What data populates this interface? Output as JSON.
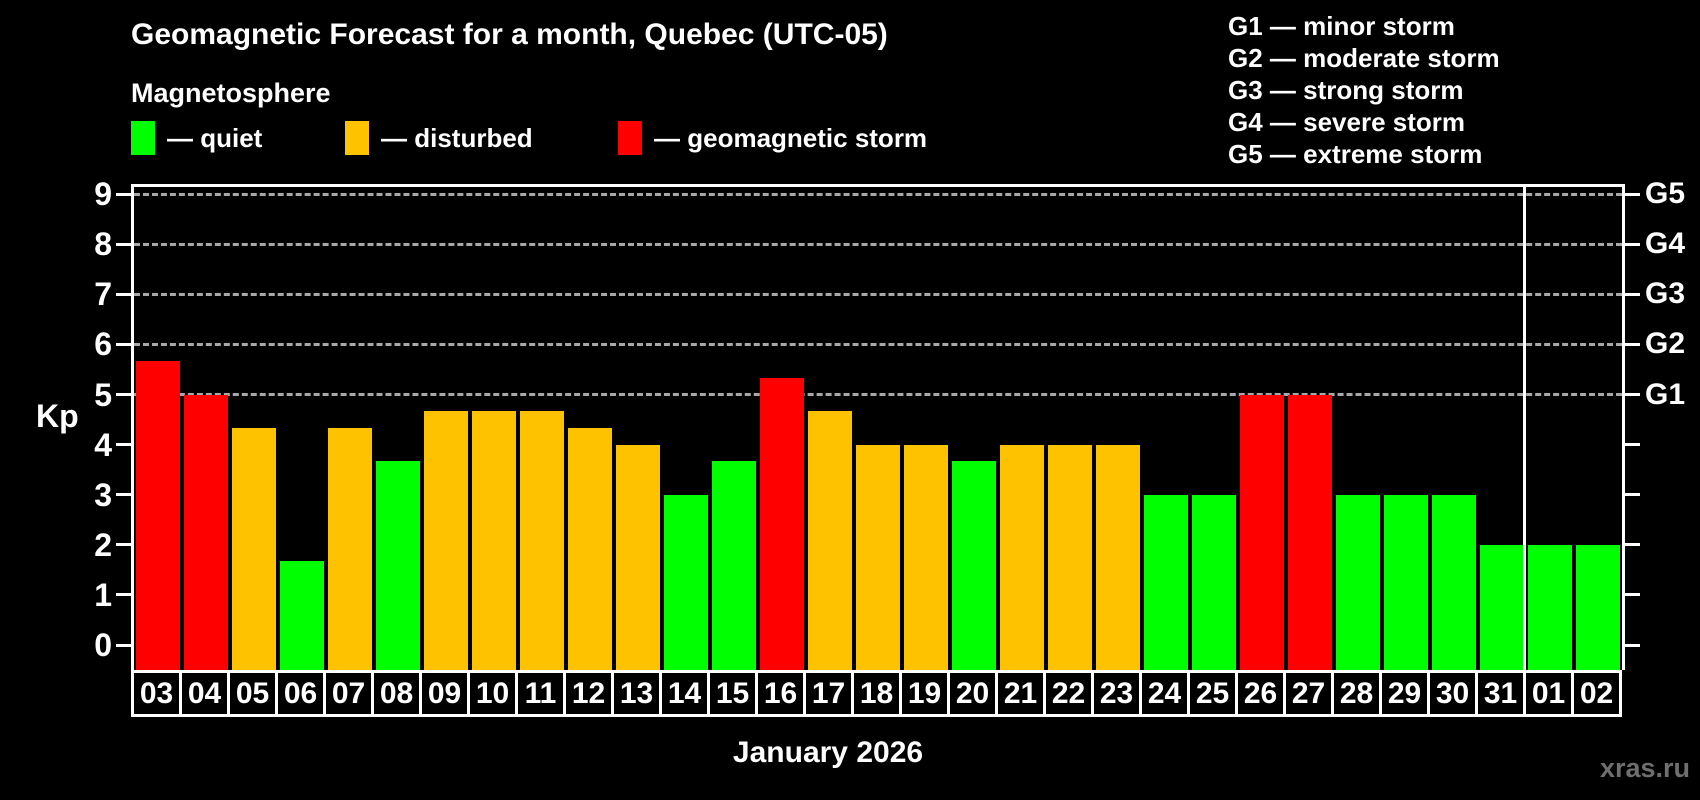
{
  "header": {
    "title": "Geomagnetic Forecast for a month, Quebec (UTC-05)",
    "subtitle": "Magnetosphere"
  },
  "legend": {
    "items": [
      {
        "key": "quiet",
        "label": "— quiet",
        "color": "#00ff00"
      },
      {
        "key": "disturbed",
        "label": "— disturbed",
        "color": "#ffc200"
      },
      {
        "key": "storm",
        "label": "— geomagnetic storm",
        "color": "#ff0000"
      }
    ]
  },
  "g_legend": [
    "G1 — minor storm",
    "G2 — moderate storm",
    "G3 — strong storm",
    "G4 — severe storm",
    "G5 — extreme storm"
  ],
  "y_axis": {
    "label": "Kp",
    "ticks": [
      0,
      1,
      2,
      3,
      4,
      5,
      6,
      7,
      8,
      9
    ]
  },
  "right_axis": {
    "labels": [
      {
        "kp": 5,
        "label": "G1"
      },
      {
        "kp": 6,
        "label": "G2"
      },
      {
        "kp": 7,
        "label": "G3"
      },
      {
        "kp": 8,
        "label": "G4"
      },
      {
        "kp": 9,
        "label": "G5"
      }
    ]
  },
  "footer": {
    "month_label": "January 2026",
    "watermark": "xras.ru"
  },
  "chart_data": {
    "type": "bar",
    "title": "Geomagnetic Forecast for a month, Quebec (UTC-05)",
    "xlabel": "January 2026",
    "ylabel": "Kp",
    "ylim": [
      0,
      9
    ],
    "gridlines_at": [
      5,
      6,
      7,
      8,
      9
    ],
    "grid": "dashed-horizontal-above-Kp5-only",
    "legend_position": "top-left",
    "month_separator_after_category": "31",
    "categories": [
      "03",
      "04",
      "05",
      "06",
      "07",
      "08",
      "09",
      "10",
      "11",
      "12",
      "13",
      "14",
      "15",
      "16",
      "17",
      "18",
      "19",
      "20",
      "21",
      "22",
      "23",
      "24",
      "25",
      "26",
      "27",
      "28",
      "29",
      "30",
      "31",
      "01",
      "02"
    ],
    "values": [
      5.67,
      5.0,
      4.33,
      1.67,
      4.33,
      3.67,
      4.67,
      4.67,
      4.67,
      4.33,
      4.0,
      3.0,
      3.67,
      5.33,
      4.67,
      4.0,
      4.0,
      3.67,
      4.0,
      4.0,
      4.0,
      3.0,
      3.0,
      5.0,
      5.0,
      3.0,
      3.0,
      3.0,
      2.0,
      2.0,
      2.0
    ],
    "statuses": [
      "storm",
      "storm",
      "disturbed",
      "quiet",
      "disturbed",
      "quiet",
      "disturbed",
      "disturbed",
      "disturbed",
      "disturbed",
      "disturbed",
      "quiet",
      "quiet",
      "storm",
      "disturbed",
      "disturbed",
      "disturbed",
      "quiet",
      "disturbed",
      "disturbed",
      "disturbed",
      "quiet",
      "quiet",
      "storm",
      "storm",
      "quiet",
      "quiet",
      "quiet",
      "quiet",
      "quiet",
      "quiet"
    ]
  }
}
